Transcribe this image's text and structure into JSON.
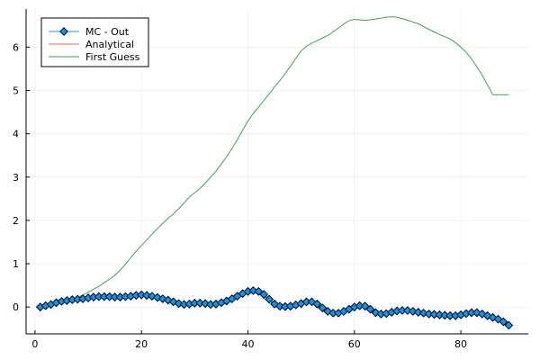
{
  "chart_data": {
    "type": "line",
    "title": "",
    "xlabel": "",
    "ylabel": "",
    "xlim": [
      -1.67,
      92.67
    ],
    "ylim": [
      -0.62,
      6.88
    ],
    "xticks": [
      0,
      20,
      40,
      60,
      80
    ],
    "yticks": [
      0,
      1,
      2,
      3,
      4,
      5,
      6
    ],
    "grid": true,
    "legend_position": "top-left",
    "series": [
      {
        "name": "MC - Out",
        "color": "#009AFA",
        "marker": "diamond",
        "x": [
          1,
          2,
          3,
          4,
          5,
          6,
          7,
          8,
          9,
          10,
          11,
          12,
          13,
          14,
          15,
          16,
          17,
          18,
          19,
          20,
          21,
          22,
          23,
          24,
          25,
          26,
          27,
          28,
          29,
          30,
          31,
          32,
          33,
          34,
          35,
          36,
          37,
          38,
          39,
          40,
          41,
          42,
          43,
          44,
          45,
          46,
          47,
          48,
          49,
          50,
          51,
          52,
          53,
          54,
          55,
          56,
          57,
          58,
          59,
          60,
          61,
          62,
          63,
          64,
          65,
          66,
          67,
          68,
          69,
          70,
          71,
          72,
          73,
          74,
          75,
          76,
          77,
          78,
          79,
          80,
          81,
          82,
          83,
          84,
          85,
          86,
          87,
          88,
          89
        ],
        "y": [
          0.0,
          0.03,
          0.06,
          0.1,
          0.13,
          0.15,
          0.17,
          0.18,
          0.19,
          0.21,
          0.23,
          0.24,
          0.24,
          0.24,
          0.23,
          0.23,
          0.24,
          0.25,
          0.27,
          0.28,
          0.27,
          0.25,
          0.22,
          0.19,
          0.16,
          0.12,
          0.08,
          0.06,
          0.07,
          0.09,
          0.09,
          0.08,
          0.06,
          0.07,
          0.1,
          0.14,
          0.19,
          0.25,
          0.31,
          0.36,
          0.38,
          0.36,
          0.29,
          0.18,
          0.07,
          0.02,
          0.01,
          0.02,
          0.05,
          0.08,
          0.12,
          0.12,
          0.07,
          -0.02,
          -0.1,
          -0.14,
          -0.14,
          -0.1,
          -0.05,
          0.0,
          0.03,
          0.02,
          -0.05,
          -0.13,
          -0.16,
          -0.15,
          -0.12,
          -0.09,
          -0.08,
          -0.08,
          -0.1,
          -0.12,
          -0.14,
          -0.16,
          -0.17,
          -0.18,
          -0.19,
          -0.2,
          -0.2,
          -0.18,
          -0.15,
          -0.13,
          -0.13,
          -0.16,
          -0.2,
          -0.24,
          -0.28,
          -0.34,
          -0.42
        ]
      },
      {
        "name": "Analytical",
        "color": "#E26F46",
        "marker": "none",
        "x": [
          1,
          2,
          3,
          4,
          5,
          6,
          7,
          8,
          9,
          10,
          11,
          12,
          13,
          14,
          15,
          16,
          17,
          18,
          19,
          20,
          21,
          22,
          23,
          24,
          25,
          26,
          27,
          28,
          29,
          30,
          31,
          32,
          33,
          34,
          35,
          36,
          37,
          38,
          39,
          40,
          41,
          42,
          43,
          44,
          45,
          46,
          47,
          48,
          49,
          50,
          51,
          52,
          53,
          54,
          55,
          56,
          57,
          58,
          59,
          60,
          61,
          62,
          63,
          64,
          65,
          66,
          67,
          68,
          69,
          70,
          71,
          72,
          73,
          74,
          75,
          76,
          77,
          78,
          79,
          80,
          81,
          82,
          83,
          84,
          85,
          86,
          87,
          88,
          89
        ],
        "y": [
          0.0,
          0.02,
          0.05,
          0.08,
          0.11,
          0.13,
          0.15,
          0.16,
          0.17,
          0.19,
          0.21,
          0.22,
          0.22,
          0.22,
          0.21,
          0.21,
          0.22,
          0.23,
          0.25,
          0.26,
          0.25,
          0.23,
          0.2,
          0.17,
          0.14,
          0.1,
          0.06,
          0.04,
          0.05,
          0.07,
          0.07,
          0.06,
          0.04,
          0.05,
          0.08,
          0.12,
          0.17,
          0.23,
          0.28,
          0.32,
          0.33,
          0.31,
          0.25,
          0.15,
          0.05,
          0.0,
          -0.01,
          0.0,
          0.03,
          0.06,
          0.1,
          0.1,
          0.05,
          -0.04,
          -0.12,
          -0.16,
          -0.16,
          -0.12,
          -0.07,
          -0.02,
          0.01,
          0.0,
          -0.07,
          -0.15,
          -0.18,
          -0.17,
          -0.14,
          -0.11,
          -0.1,
          -0.1,
          -0.12,
          -0.14,
          -0.16,
          -0.18,
          -0.19,
          -0.2,
          -0.21,
          -0.22,
          -0.22,
          -0.2,
          -0.17,
          -0.15,
          -0.15,
          -0.18,
          -0.22,
          -0.26,
          -0.3,
          -0.36,
          -0.44
        ]
      },
      {
        "name": "First Guess",
        "color": "#3EA44E",
        "marker": "none",
        "x": [
          1,
          2,
          3,
          4,
          5,
          6,
          7,
          8,
          9,
          10,
          11,
          12,
          13,
          14,
          15,
          16,
          17,
          18,
          19,
          20,
          21,
          22,
          23,
          24,
          25,
          26,
          27,
          28,
          29,
          30,
          31,
          32,
          33,
          34,
          35,
          36,
          37,
          38,
          39,
          40,
          41,
          42,
          43,
          44,
          45,
          46,
          47,
          48,
          49,
          50,
          51,
          52,
          53,
          54,
          55,
          56,
          57,
          58,
          59,
          60,
          61,
          62,
          63,
          64,
          65,
          66,
          67,
          68,
          69,
          70,
          71,
          72,
          73,
          74,
          75,
          76,
          77,
          78,
          79,
          80,
          81,
          82,
          83,
          84,
          85,
          86,
          87,
          88,
          89
        ],
        "y": [
          0.0,
          0.02,
          0.05,
          0.08,
          0.11,
          0.14,
          0.18,
          0.22,
          0.28,
          0.34,
          0.41,
          0.48,
          0.56,
          0.64,
          0.73,
          0.85,
          0.99,
          1.14,
          1.29,
          1.42,
          1.55,
          1.68,
          1.81,
          1.93,
          2.05,
          2.15,
          2.27,
          2.4,
          2.54,
          2.64,
          2.74,
          2.86,
          3.0,
          3.14,
          3.3,
          3.47,
          3.66,
          3.86,
          4.08,
          4.29,
          4.47,
          4.62,
          4.77,
          4.92,
          5.08,
          5.23,
          5.39,
          5.56,
          5.74,
          5.91,
          6.02,
          6.09,
          6.15,
          6.21,
          6.27,
          6.35,
          6.44,
          6.53,
          6.61,
          6.64,
          6.63,
          6.62,
          6.63,
          6.65,
          6.67,
          6.69,
          6.7,
          6.69,
          6.66,
          6.62,
          6.58,
          6.54,
          6.47,
          6.41,
          6.35,
          6.29,
          6.24,
          6.19,
          6.1,
          6.0,
          5.88,
          5.73,
          5.55,
          5.35,
          5.13,
          4.9,
          4.9,
          4.9,
          4.9
        ]
      }
    ]
  }
}
